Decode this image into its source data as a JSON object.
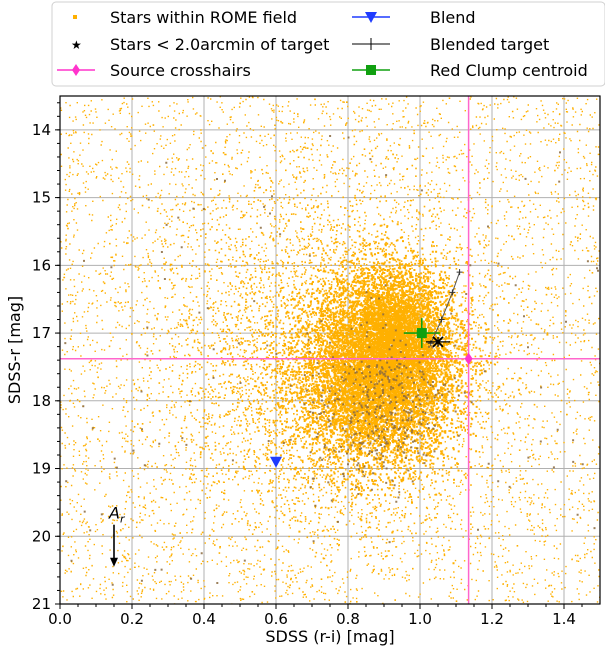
{
  "chart_data": {
    "type": "scatter",
    "title": "",
    "xlabel": "SDSS (r-i) [mag]",
    "ylabel": "SDSS-r [mag]",
    "xlim": [
      0.0,
      1.5
    ],
    "ylim": [
      21,
      13.5
    ],
    "y_inverted": true,
    "grid": true,
    "legend_placement": "above plot, two columns",
    "x_ticks": [
      "0.0",
      "0.2",
      "0.4",
      "0.6",
      "0.8",
      "1.0",
      "1.2",
      "1.4"
    ],
    "x_tick_values": [
      0.0,
      0.2,
      0.4,
      0.6,
      0.8,
      1.0,
      1.2,
      1.4
    ],
    "y_ticks": [
      "14",
      "15",
      "16",
      "17",
      "18",
      "19",
      "20",
      "21"
    ],
    "y_tick_values": [
      14,
      15,
      16,
      17,
      18,
      19,
      20,
      21
    ],
    "legend": [
      {
        "label": "Stars within ROME field",
        "marker": "square-dot",
        "color": "#ffb000"
      },
      {
        "label": "Stars < 2.0arcmin of target",
        "marker": "star",
        "color": "#8b6a3e"
      },
      {
        "label": "Source crosshairs",
        "marker": "diamond-line",
        "color": "#ff33cc"
      },
      {
        "label": "Blend",
        "marker": "triangle-down-line",
        "color": "#1f3cff"
      },
      {
        "label": "Blended target",
        "marker": "plus-line",
        "color": "#000000"
      },
      {
        "label": "Red Clump centroid",
        "marker": "square-line",
        "color": "#10a010"
      }
    ],
    "series": [
      {
        "name": "Source crosshairs",
        "x": 1.135,
        "y": 17.38,
        "color": "#ff33cc"
      },
      {
        "name": "Blend",
        "x": 0.6,
        "y": 18.9,
        "color": "#1f3cff"
      },
      {
        "name": "Red Clump centroid",
        "x": 1.005,
        "y": 17.0,
        "x_err": 0.05,
        "y_err": 0.22,
        "color": "#10a010"
      },
      {
        "name": "Blended target",
        "x": 1.05,
        "y": 17.13,
        "color": "#000000",
        "track": [
          [
            1.03,
            17.15
          ],
          [
            1.06,
            16.8
          ],
          [
            1.09,
            16.4
          ],
          [
            1.11,
            16.1
          ]
        ]
      }
    ],
    "annotations": [
      {
        "text": "A",
        "subscript": "r",
        "x": 0.15,
        "y": 19.8,
        "arrow_to_y": 20.45
      }
    ],
    "colors": {
      "field_stars": "#ffb000",
      "near_stars": "#8b6a3e",
      "crosshair": "#ff66cc"
    }
  }
}
